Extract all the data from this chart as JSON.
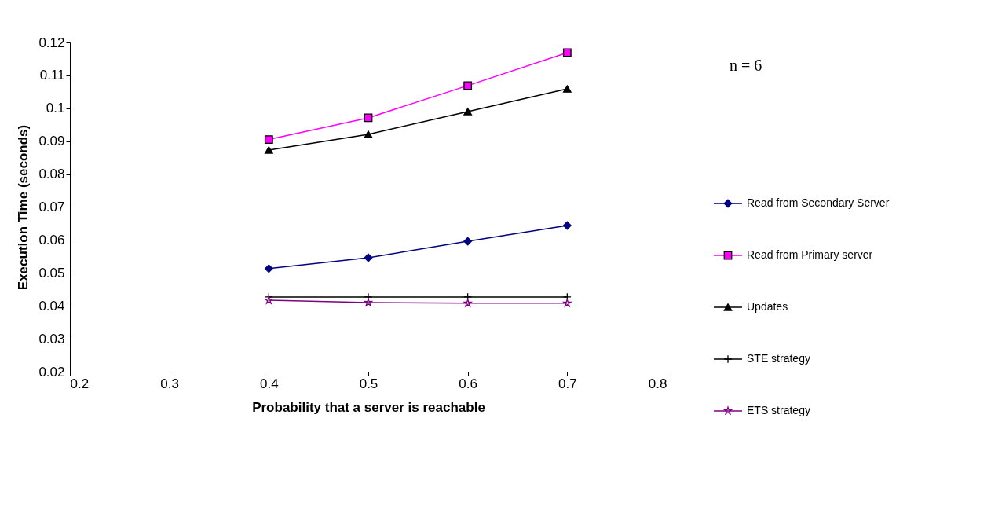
{
  "chart_data": {
    "type": "line",
    "xlabel": "Probability that a server is reachable",
    "ylabel": "Execution Time (seconds)",
    "x": [
      0.4,
      0.5,
      0.6,
      0.7
    ],
    "series": [
      {
        "name": "Read from Secondary Server",
        "color": "#000080",
        "marker": "diamond",
        "values": [
          0.0513,
          0.0546,
          0.0596,
          0.0644
        ]
      },
      {
        "name": "Read from Primary server",
        "color": "#ff00ff",
        "marker": "square",
        "values": [
          0.0905,
          0.0971,
          0.1069,
          0.1169
        ]
      },
      {
        "name": "Updates",
        "color": "#000000",
        "marker": "triangle",
        "values": [
          0.0873,
          0.0921,
          0.099,
          0.1059
        ]
      },
      {
        "name": "STE strategy",
        "color": "#000000",
        "marker": "cross",
        "values": [
          0.0427,
          0.0427,
          0.0427,
          0.0427
        ]
      },
      {
        "name": "ETS strategy",
        "color": "#800080",
        "marker": "star",
        "values": [
          0.0417,
          0.041,
          0.0408,
          0.0408
        ]
      }
    ],
    "xlim": [
      0.2,
      0.8
    ],
    "xticks": [
      0.2,
      0.3,
      0.4,
      0.5,
      0.6,
      0.7,
      0.8
    ],
    "ylim": [
      0.02,
      0.12
    ],
    "yticks": [
      0.02,
      0.03,
      0.04,
      0.05,
      0.06,
      0.07,
      0.08,
      0.09,
      0.1,
      0.11,
      0.12
    ],
    "grid": false,
    "legend": "right",
    "line_style": "solid",
    "annotations": [
      "n = 6"
    ]
  }
}
